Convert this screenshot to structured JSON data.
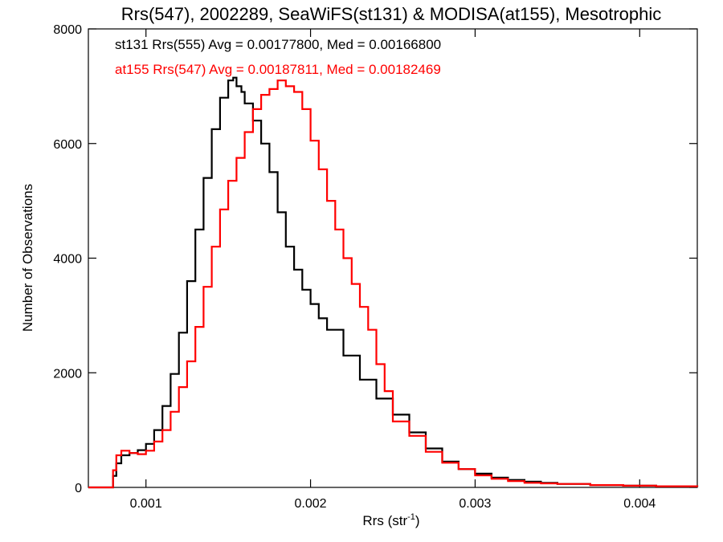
{
  "chart_data": {
    "type": "line",
    "title": "Rrs(547), 2002289, SeaWiFS(st131) & MODISA(at155), Mesotrophic",
    "xlabel_main": "Rrs (str",
    "xlabel_sup": "-1",
    "xlabel_close": ")",
    "ylabel": "Number of Observations",
    "xlim": [
      0.00065,
      0.00435
    ],
    "ylim": [
      0,
      8000
    ],
    "x_ticks": [
      0.001,
      0.002,
      0.003,
      0.004
    ],
    "x_tick_labels": [
      "0.001",
      "0.002",
      "0.003",
      "0.004"
    ],
    "y_ticks": [
      0,
      2000,
      4000,
      6000,
      8000
    ],
    "y_tick_labels": [
      "0",
      "2000",
      "4000",
      "6000",
      "8000"
    ],
    "annotations": [
      {
        "text": "st131 Rrs(555) Avg = 0.00177800, Med = 0.00166800",
        "color": "#000000"
      },
      {
        "text": "at155 Rrs(547) Avg = 0.00187811, Med = 0.00182469",
        "color": "#ff0000"
      }
    ],
    "series": [
      {
        "color": "#000000",
        "x": [
          0.00065,
          0.00079,
          0.0008,
          0.00082,
          0.00085,
          0.0009,
          0.00095,
          0.001,
          0.00105,
          0.0011,
          0.00115,
          0.0012,
          0.00125,
          0.0013,
          0.00135,
          0.0014,
          0.00145,
          0.0015,
          0.00153,
          0.00155,
          0.00158,
          0.0016,
          0.00165,
          0.0017,
          0.00175,
          0.0018,
          0.00185,
          0.0019,
          0.00195,
          0.002,
          0.00205,
          0.0021,
          0.0022,
          0.0023,
          0.0024,
          0.0025,
          0.0026,
          0.0027,
          0.0028,
          0.0029,
          0.003,
          0.0031,
          0.0032,
          0.0033,
          0.0034,
          0.0035,
          0.0037,
          0.0039,
          0.0041,
          0.00435
        ],
        "y": [
          0,
          0,
          200,
          420,
          560,
          600,
          650,
          760,
          1000,
          1420,
          1980,
          2700,
          3600,
          4500,
          5400,
          6250,
          6800,
          7100,
          7150,
          7000,
          6900,
          6700,
          6400,
          6000,
          5500,
          4800,
          4200,
          3800,
          3450,
          3200,
          2950,
          2750,
          2300,
          1880,
          1550,
          1270,
          960,
          680,
          450,
          320,
          240,
          170,
          130,
          100,
          80,
          60,
          40,
          30,
          20,
          10
        ]
      },
      {
        "color": "#ff0000",
        "x": [
          0.00065,
          0.00079,
          0.0008,
          0.00082,
          0.00085,
          0.0009,
          0.00095,
          0.001,
          0.00105,
          0.0011,
          0.00115,
          0.0012,
          0.00125,
          0.0013,
          0.00135,
          0.0014,
          0.00145,
          0.0015,
          0.00155,
          0.0016,
          0.00165,
          0.0017,
          0.00175,
          0.0018,
          0.00185,
          0.0019,
          0.00195,
          0.002,
          0.00205,
          0.0021,
          0.00215,
          0.0022,
          0.00225,
          0.0023,
          0.00235,
          0.0024,
          0.00245,
          0.0025,
          0.0026,
          0.0027,
          0.0028,
          0.0029,
          0.003,
          0.0031,
          0.0032,
          0.0033,
          0.0034,
          0.0035,
          0.0037,
          0.0039,
          0.0041,
          0.00435
        ],
        "y": [
          0,
          0,
          300,
          560,
          640,
          600,
          580,
          640,
          800,
          1000,
          1320,
          1750,
          2200,
          2800,
          3500,
          4200,
          4850,
          5350,
          5750,
          6200,
          6600,
          6850,
          6950,
          7100,
          7000,
          6900,
          6600,
          6050,
          5550,
          5000,
          4500,
          4000,
          3550,
          3150,
          2750,
          2150,
          1680,
          1150,
          900,
          620,
          430,
          320,
          210,
          150,
          110,
          80,
          70,
          60,
          40,
          30,
          20,
          10
        ]
      }
    ]
  }
}
